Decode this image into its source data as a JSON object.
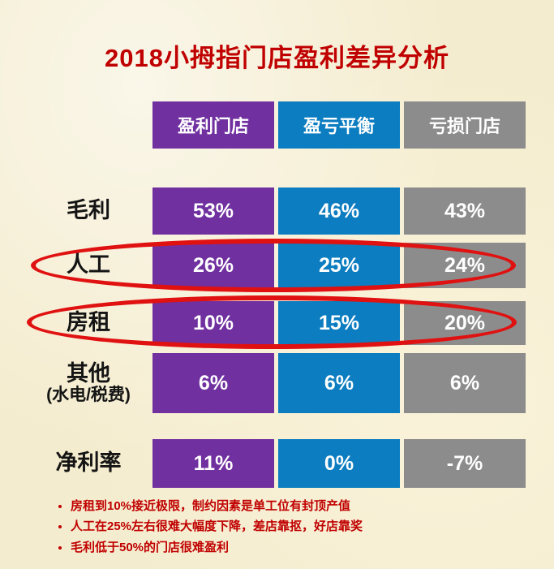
{
  "title": "2018小拇指门店盈利差异分析",
  "colors": {
    "title": "#C00000",
    "notes": "#C00000",
    "background": "#F4ECCE",
    "highlight": "#E01111"
  },
  "table": {
    "columns": [
      {
        "label": "盈利门店",
        "color": "#7030A0"
      },
      {
        "label": "盈亏平衡",
        "color": "#0C7DC0"
      },
      {
        "label": "亏损门店",
        "color": "#8C8C8C"
      }
    ],
    "rows": [
      {
        "label": "毛利",
        "values": [
          "53%",
          "46%",
          "43%"
        ],
        "circled": false
      },
      {
        "label": "人工",
        "values": [
          "26%",
          "25%",
          "24%"
        ],
        "circled": true
      },
      {
        "label": "房租",
        "values": [
          "10%",
          "15%",
          "20%"
        ],
        "circled": true
      },
      {
        "label": "其他",
        "label_sub": "(水电/税费)",
        "values": [
          "6%",
          "6%",
          "6%"
        ],
        "circled": false
      },
      {
        "label": "净利率",
        "values": [
          "11%",
          "0%",
          "-7%"
        ],
        "circled": false
      }
    ]
  },
  "notes": [
    "房租到10%接近极限，制约因素是单工位有封顶产值",
    "人工在25%左右很难大幅度下降，差店靠抠，好店靠奖",
    "毛利低于50%的门店很难盈利"
  ],
  "chart_data": {
    "type": "table",
    "title": "2018小拇指门店盈利差异分析",
    "columns": [
      "盈利门店",
      "盈亏平衡",
      "亏损门店"
    ],
    "row_labels": [
      "毛利",
      "人工",
      "房租",
      "其他(水电/税费)",
      "净利率"
    ],
    "rows": [
      [
        "53%",
        "46%",
        "43%"
      ],
      [
        "26%",
        "25%",
        "24%"
      ],
      [
        "10%",
        "15%",
        "20%"
      ],
      [
        "6%",
        "6%",
        "6%"
      ],
      [
        "11%",
        "0%",
        "-7%"
      ]
    ],
    "highlighted_rows": [
      "人工",
      "房租"
    ],
    "annotations": [
      "房租到10%接近极限，制约因素是单工位有封顶产值",
      "人工在25%左右很难大幅度下降，差店靠抠，好店靠奖",
      "毛利低于50%的门店很难盈利"
    ]
  }
}
